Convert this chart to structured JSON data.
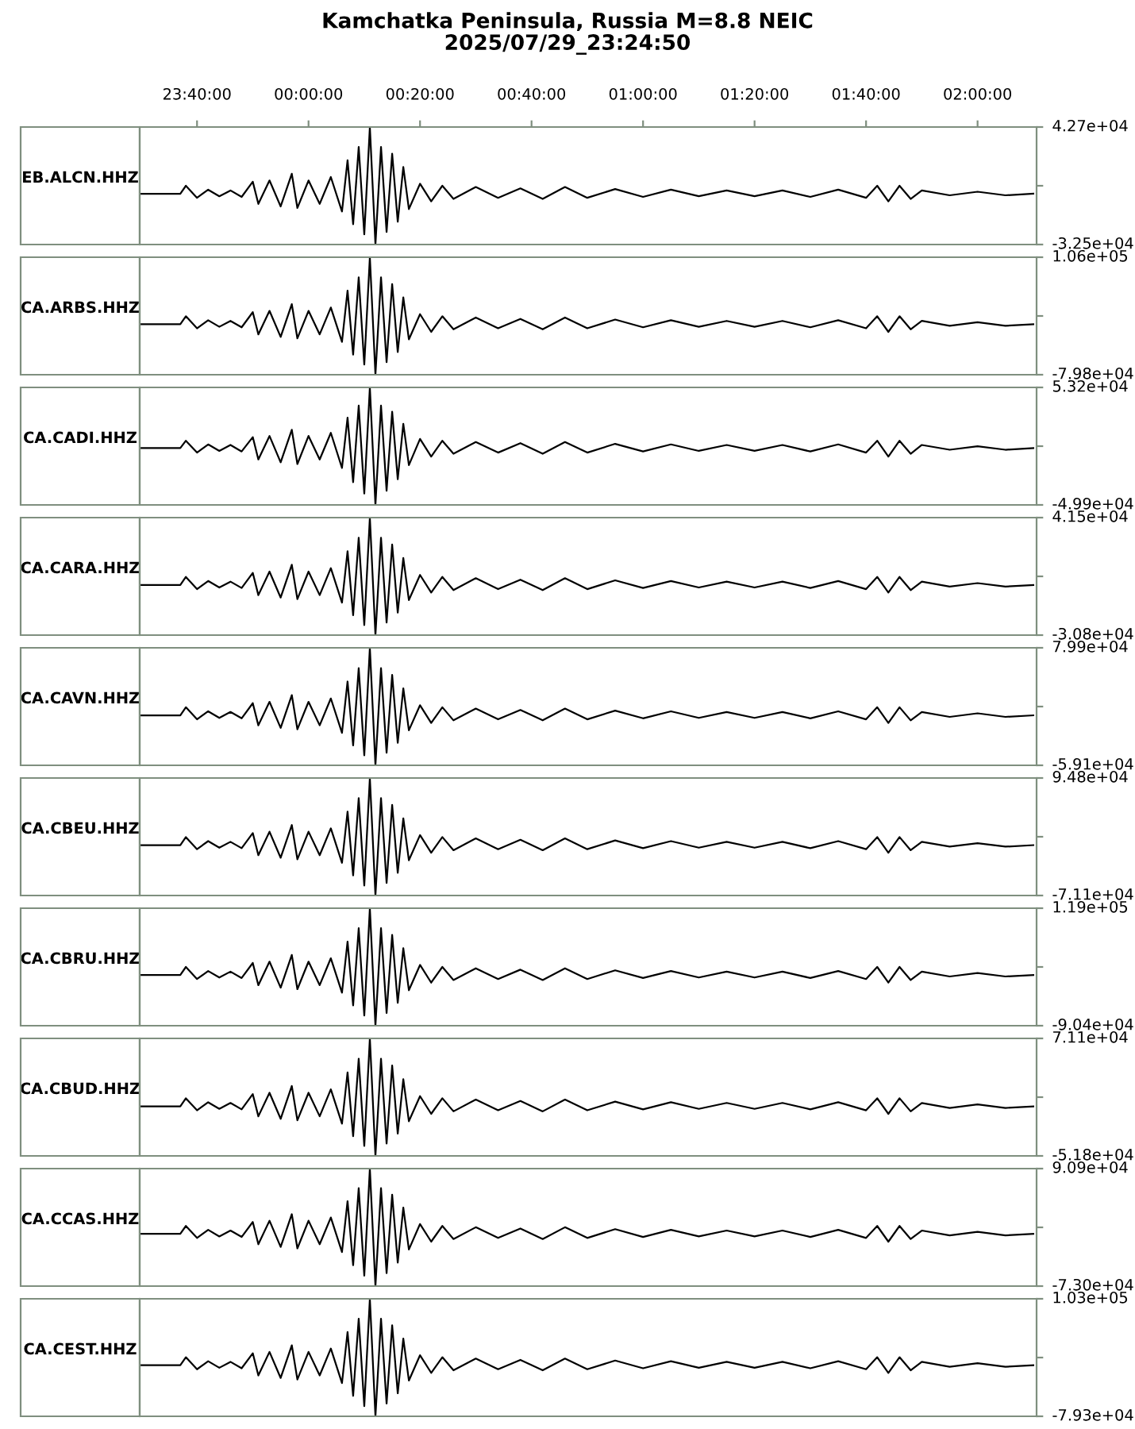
{
  "chart_data": [
    {
      "type": "line",
      "title": "Kamchatka Peninsula, Russia M=8.8 NEIC",
      "subtitle": "2025/07/29_23:24:50",
      "ylabel": "EB.ALCN.HHZ",
      "color": "#000000",
      "x": [
        "2025-07-29T23:30",
        "2025-07-29T23:37",
        "2025-07-29T23:38",
        "2025-07-29T23:40",
        "2025-07-29T23:42",
        "2025-07-29T23:44",
        "2025-07-29T23:46",
        "2025-07-29T23:48",
        "2025-07-29T23:50",
        "2025-07-29T23:51",
        "2025-07-29T23:53",
        "2025-07-29T23:55",
        "2025-07-29T23:57",
        "2025-07-29T23:58",
        "2025-07-30T00:00",
        "2025-07-30T00:02",
        "2025-07-30T00:04",
        "2025-07-30T00:06",
        "2025-07-30T00:07",
        "2025-07-30T00:08",
        "2025-07-30T00:09",
        "2025-07-30T00:10",
        "2025-07-30T00:11",
        "2025-07-30T00:12",
        "2025-07-30T00:13",
        "2025-07-30T00:14",
        "2025-07-30T00:15",
        "2025-07-30T00:16",
        "2025-07-30T00:17",
        "2025-07-30T00:18",
        "2025-07-30T00:20",
        "2025-07-30T00:22",
        "2025-07-30T00:24",
        "2025-07-30T00:26",
        "2025-07-30T00:30",
        "2025-07-30T00:34",
        "2025-07-30T00:38",
        "2025-07-30T00:42",
        "2025-07-30T00:46",
        "2025-07-30T00:50",
        "2025-07-30T00:55",
        "2025-07-30T01:00",
        "2025-07-30T01:05",
        "2025-07-30T01:10",
        "2025-07-30T01:15",
        "2025-07-30T01:20",
        "2025-07-30T01:25",
        "2025-07-30T01:30",
        "2025-07-30T01:35",
        "2025-07-30T01:40",
        "2025-07-30T01:42",
        "2025-07-30T01:44",
        "2025-07-30T01:46",
        "2025-07-30T01:48",
        "2025-07-30T01:50",
        "2025-07-30T01:55",
        "2025-07-30T02:00",
        "2025-07-30T02:05",
        "2025-07-30T02:10"
      ],
      "values": [
        0,
        0,
        5100,
        -2600,
        2600,
        -1600,
        2100,
        -2000,
        7700,
        -6500,
        8500,
        -8100,
        12800,
        -9100,
        8500,
        -6500,
        10700,
        -11400,
        21400,
        -19500,
        29900,
        -26000,
        42700,
        -32500,
        29900,
        -24400,
        25600,
        -17900,
        17100,
        -9800,
        6400,
        -4900,
        5100,
        -3300,
        4300,
        -2600,
        3400,
        -3300,
        4300,
        -2600,
        3000,
        -2000,
        2600,
        -1600,
        2100,
        -1600,
        2100,
        -2000,
        2600,
        -2600,
        5100,
        -4900,
        5100,
        -3300,
        2100,
        -1000,
        1300,
        -1000,
        0
      ],
      "xlim": [
        "2025-07-29T23:29:43",
        "2025-07-30T02:10:35"
      ],
      "xticks": [
        {
          "value": "2025-07-29T23:40",
          "label": "23:40:00"
        },
        {
          "value": "2025-07-30T00:00",
          "label": "00:00:00"
        },
        {
          "value": "2025-07-30T00:20",
          "label": "00:20:00"
        },
        {
          "value": "2025-07-30T00:40",
          "label": "00:40:00"
        },
        {
          "value": "2025-07-30T01:00",
          "label": "01:00:00"
        },
        {
          "value": "2025-07-30T01:20",
          "label": "01:20:00"
        },
        {
          "value": "2025-07-30T01:40",
          "label": "01:40:00"
        },
        {
          "value": "2025-07-30T02:00",
          "label": "02:00:00"
        }
      ],
      "ylim": [
        -32500,
        42700
      ],
      "yticks": [
        {
          "value": -32500,
          "label": "-3.25e+04"
        },
        {
          "value": 5100,
          "label": null
        },
        {
          "value": 42700,
          "label": "4.27e+04"
        }
      ]
    },
    {
      "type": "line",
      "ylabel": "CA.ARBS.HHZ",
      "color": "#000000",
      "tick_labels": "y",
      "x": [
        "2025-07-29T23:30",
        "2025-07-29T23:37",
        "2025-07-29T23:38",
        "2025-07-29T23:40",
        "2025-07-29T23:42",
        "2025-07-29T23:44",
        "2025-07-29T23:46",
        "2025-07-29T23:48",
        "2025-07-29T23:50",
        "2025-07-29T23:51",
        "2025-07-29T23:53",
        "2025-07-29T23:55",
        "2025-07-29T23:57",
        "2025-07-29T23:58",
        "2025-07-30T00:00",
        "2025-07-30T00:02",
        "2025-07-30T00:04",
        "2025-07-30T00:06",
        "2025-07-30T00:07",
        "2025-07-30T00:08",
        "2025-07-30T00:09",
        "2025-07-30T00:10",
        "2025-07-30T00:11",
        "2025-07-30T00:12",
        "2025-07-30T00:13",
        "2025-07-30T00:14",
        "2025-07-30T00:15",
        "2025-07-30T00:16",
        "2025-07-30T00:17",
        "2025-07-30T00:18",
        "2025-07-30T00:20",
        "2025-07-30T00:22",
        "2025-07-30T00:24",
        "2025-07-30T00:26",
        "2025-07-30T00:30",
        "2025-07-30T00:34",
        "2025-07-30T00:38",
        "2025-07-30T00:42",
        "2025-07-30T00:46",
        "2025-07-30T00:50",
        "2025-07-30T00:55",
        "2025-07-30T01:00",
        "2025-07-30T01:05",
        "2025-07-30T01:10",
        "2025-07-30T01:15",
        "2025-07-30T01:20",
        "2025-07-30T01:25",
        "2025-07-30T01:30",
        "2025-07-30T01:35",
        "2025-07-30T01:40",
        "2025-07-30T01:42",
        "2025-07-30T01:44",
        "2025-07-30T01:46",
        "2025-07-30T01:48",
        "2025-07-30T01:50",
        "2025-07-30T01:55",
        "2025-07-30T02:00",
        "2025-07-30T02:05",
        "2025-07-30T02:10"
      ],
      "values": [
        0,
        0,
        12700,
        -6400,
        6400,
        -4000,
        5300,
        -4800,
        19100,
        -16000,
        21200,
        -20000,
        31800,
        -22300,
        21200,
        -16000,
        26500,
        -27900,
        53000,
        -47900,
        74200,
        -63800,
        106000,
        -79800,
        74200,
        -59900,
        63600,
        -43900,
        42400,
        -23900,
        15900,
        -12000,
        12700,
        -8000,
        10600,
        -6400,
        8500,
        -8000,
        10600,
        -6400,
        7400,
        -4800,
        6400,
        -4000,
        5300,
        -4000,
        5300,
        -4800,
        6400,
        -6400,
        12700,
        -12000,
        12700,
        -8000,
        5300,
        -2400,
        3200,
        -2400,
        0
      ],
      "xlim": [
        "2025-07-29T23:29:43",
        "2025-07-30T02:10:35"
      ],
      "ylim": [
        -79800,
        106000
      ],
      "yticks": [
        {
          "value": -79800,
          "label": "-7.98e+04"
        },
        {
          "value": 13100,
          "label": null
        },
        {
          "value": 106000,
          "label": "1.06e+05"
        }
      ]
    },
    {
      "type": "line",
      "ylabel": "CA.CADI.HHZ",
      "color": "#000000",
      "tick_labels": "y",
      "x": [
        "2025-07-29T23:30",
        "2025-07-29T23:37",
        "2025-07-29T23:38",
        "2025-07-29T23:40",
        "2025-07-29T23:42",
        "2025-07-29T23:44",
        "2025-07-29T23:46",
        "2025-07-29T23:48",
        "2025-07-29T23:50",
        "2025-07-29T23:51",
        "2025-07-29T23:53",
        "2025-07-29T23:55",
        "2025-07-29T23:57",
        "2025-07-29T23:58",
        "2025-07-30T00:00",
        "2025-07-30T00:02",
        "2025-07-30T00:04",
        "2025-07-30T00:06",
        "2025-07-30T00:07",
        "2025-07-30T00:08",
        "2025-07-30T00:09",
        "2025-07-30T00:10",
        "2025-07-30T00:11",
        "2025-07-30T00:12",
        "2025-07-30T00:13",
        "2025-07-30T00:14",
        "2025-07-30T00:15",
        "2025-07-30T00:16",
        "2025-07-30T00:17",
        "2025-07-30T00:18",
        "2025-07-30T00:20",
        "2025-07-30T00:22",
        "2025-07-30T00:24",
        "2025-07-30T00:26",
        "2025-07-30T00:30",
        "2025-07-30T00:34",
        "2025-07-30T00:38",
        "2025-07-30T00:42",
        "2025-07-30T00:46",
        "2025-07-30T00:50",
        "2025-07-30T00:55",
        "2025-07-30T01:00",
        "2025-07-30T01:05",
        "2025-07-30T01:10",
        "2025-07-30T01:15",
        "2025-07-30T01:20",
        "2025-07-30T01:25",
        "2025-07-30T01:30",
        "2025-07-30T01:35",
        "2025-07-30T01:40",
        "2025-07-30T01:42",
        "2025-07-30T01:44",
        "2025-07-30T01:46",
        "2025-07-30T01:48",
        "2025-07-30T01:50",
        "2025-07-30T01:55",
        "2025-07-30T02:00",
        "2025-07-30T02:05",
        "2025-07-30T02:10"
      ],
      "values": [
        0,
        0,
        6400,
        -4000,
        3200,
        -2500,
        2700,
        -3000,
        9600,
        -10000,
        10600,
        -12500,
        16000,
        -14000,
        10600,
        -10000,
        13300,
        -17500,
        26600,
        -29900,
        37200,
        -39900,
        53200,
        -49900,
        37200,
        -37400,
        31900,
        -27400,
        21300,
        -15000,
        8000,
        -7500,
        6400,
        -5000,
        5300,
        -4000,
        4300,
        -5000,
        5300,
        -4000,
        3700,
        -3000,
        3200,
        -2500,
        2700,
        -2500,
        2700,
        -3000,
        3200,
        -4000,
        6400,
        -7500,
        6400,
        -5000,
        2700,
        -1500,
        1600,
        -1500,
        0
      ],
      "xlim": [
        "2025-07-29T23:29:43",
        "2025-07-30T02:10:35"
      ],
      "ylim": [
        -49900,
        53200
      ],
      "yticks": [
        {
          "value": -49900,
          "label": "-4.99e+04"
        },
        {
          "value": 1650,
          "label": null
        },
        {
          "value": 53200,
          "label": "5.32e+04"
        }
      ]
    },
    {
      "type": "line",
      "ylabel": "CA.CARA.HHZ",
      "color": "#000000",
      "tick_labels": "y",
      "x": [
        "2025-07-29T23:30",
        "2025-07-29T23:37",
        "2025-07-29T23:38",
        "2025-07-29T23:40",
        "2025-07-29T23:42",
        "2025-07-29T23:44",
        "2025-07-29T23:46",
        "2025-07-29T23:48",
        "2025-07-29T23:50",
        "2025-07-29T23:51",
        "2025-07-29T23:53",
        "2025-07-29T23:55",
        "2025-07-29T23:57",
        "2025-07-29T23:58",
        "2025-07-30T00:00",
        "2025-07-30T00:02",
        "2025-07-30T00:04",
        "2025-07-30T00:06",
        "2025-07-30T00:07",
        "2025-07-30T00:08",
        "2025-07-30T00:09",
        "2025-07-30T00:10",
        "2025-07-30T00:11",
        "2025-07-30T00:12",
        "2025-07-30T00:13",
        "2025-07-30T00:14",
        "2025-07-30T00:15",
        "2025-07-30T00:16",
        "2025-07-30T00:17",
        "2025-07-30T00:18",
        "2025-07-30T00:20",
        "2025-07-30T00:22",
        "2025-07-30T00:24",
        "2025-07-30T00:26",
        "2025-07-30T00:30",
        "2025-07-30T00:34",
        "2025-07-30T00:38",
        "2025-07-30T00:42",
        "2025-07-30T00:46",
        "2025-07-30T00:50",
        "2025-07-30T00:55",
        "2025-07-30T01:00",
        "2025-07-30T01:05",
        "2025-07-30T01:10",
        "2025-07-30T01:15",
        "2025-07-30T01:20",
        "2025-07-30T01:25",
        "2025-07-30T01:30",
        "2025-07-30T01:35",
        "2025-07-30T01:40",
        "2025-07-30T01:42",
        "2025-07-30T01:44",
        "2025-07-30T01:46",
        "2025-07-30T01:48",
        "2025-07-30T01:50",
        "2025-07-30T01:55",
        "2025-07-30T02:00",
        "2025-07-30T02:05",
        "2025-07-30T02:10"
      ],
      "values": [
        0,
        0,
        5000,
        -2500,
        2500,
        -1500,
        2100,
        -1800,
        7500,
        -6200,
        8300,
        -7700,
        12500,
        -8600,
        8300,
        -6200,
        10400,
        -10800,
        20800,
        -18500,
        29100,
        -24600,
        41500,
        -30800,
        29100,
        -23100,
        24900,
        -16900,
        16600,
        -9200,
        6200,
        -4600,
        5000,
        -3100,
        4200,
        -2500,
        3300,
        -3100,
        4200,
        -2500,
        2900,
        -1800,
        2500,
        -1500,
        2100,
        -1500,
        2100,
        -1800,
        2500,
        -2500,
        5000,
        -4600,
        5000,
        -3100,
        2100,
        -900,
        1200,
        -900,
        0
      ],
      "xlim": [
        "2025-07-29T23:29:43",
        "2025-07-30T02:10:35"
      ],
      "ylim": [
        -30800,
        41500
      ],
      "yticks": [
        {
          "value": -30800,
          "label": "-3.08e+04"
        },
        {
          "value": 5350,
          "label": null
        },
        {
          "value": 41500,
          "label": "4.15e+04"
        }
      ]
    },
    {
      "type": "line",
      "ylabel": "CA.CAVN.HHZ",
      "color": "#000000",
      "tick_labels": "y",
      "x": [
        "2025-07-29T23:30",
        "2025-07-29T23:37",
        "2025-07-29T23:38",
        "2025-07-29T23:40",
        "2025-07-29T23:42",
        "2025-07-29T23:44",
        "2025-07-29T23:46",
        "2025-07-29T23:48",
        "2025-07-29T23:50",
        "2025-07-29T23:51",
        "2025-07-29T23:53",
        "2025-07-29T23:55",
        "2025-07-29T23:57",
        "2025-07-29T23:58",
        "2025-07-30T00:00",
        "2025-07-30T00:02",
        "2025-07-30T00:04",
        "2025-07-30T00:06",
        "2025-07-30T00:07",
        "2025-07-30T00:08",
        "2025-07-30T00:09",
        "2025-07-30T00:10",
        "2025-07-30T00:11",
        "2025-07-30T00:12",
        "2025-07-30T00:13",
        "2025-07-30T00:14",
        "2025-07-30T00:15",
        "2025-07-30T00:16",
        "2025-07-30T00:17",
        "2025-07-30T00:18",
        "2025-07-30T00:20",
        "2025-07-30T00:22",
        "2025-07-30T00:24",
        "2025-07-30T00:26",
        "2025-07-30T00:30",
        "2025-07-30T00:34",
        "2025-07-30T00:38",
        "2025-07-30T00:42",
        "2025-07-30T00:46",
        "2025-07-30T00:50",
        "2025-07-30T00:55",
        "2025-07-30T01:00",
        "2025-07-30T01:05",
        "2025-07-30T01:10",
        "2025-07-30T01:15",
        "2025-07-30T01:20",
        "2025-07-30T01:25",
        "2025-07-30T01:30",
        "2025-07-30T01:35",
        "2025-07-30T01:40",
        "2025-07-30T01:42",
        "2025-07-30T01:44",
        "2025-07-30T01:46",
        "2025-07-30T01:48",
        "2025-07-30T01:50",
        "2025-07-30T01:55",
        "2025-07-30T02:00",
        "2025-07-30T02:05",
        "2025-07-30T02:10"
      ],
      "values": [
        0,
        0,
        9600,
        -4700,
        4800,
        -3000,
        4000,
        -3500,
        14400,
        -11800,
        16000,
        -14800,
        24000,
        -16500,
        16000,
        -11800,
        20000,
        -20700,
        40000,
        -35500,
        55900,
        -47300,
        79900,
        -59100,
        55900,
        -44300,
        47900,
        -32500,
        32000,
        -17700,
        12000,
        -8900,
        9600,
        -5900,
        8000,
        -4700,
        6400,
        -5900,
        8000,
        -4700,
        5600,
        -3500,
        4800,
        -3000,
        4000,
        -3000,
        4000,
        -3500,
        4800,
        -4700,
        9600,
        -8900,
        9600,
        -5900,
        4000,
        -1800,
        2400,
        -1800,
        0
      ],
      "xlim": [
        "2025-07-29T23:29:43",
        "2025-07-30T02:10:35"
      ],
      "ylim": [
        -59100,
        79900
      ],
      "yticks": [
        {
          "value": -59100,
          "label": "-5.91e+04"
        },
        {
          "value": 10400,
          "label": null
        },
        {
          "value": 79900,
          "label": "7.99e+04"
        }
      ]
    },
    {
      "type": "line",
      "ylabel": "CA.CBEU.HHZ",
      "color": "#000000",
      "tick_labels": "y",
      "x": [
        "2025-07-29T23:30",
        "2025-07-29T23:37",
        "2025-07-29T23:38",
        "2025-07-29T23:40",
        "2025-07-29T23:42",
        "2025-07-29T23:44",
        "2025-07-29T23:46",
        "2025-07-29T23:48",
        "2025-07-29T23:50",
        "2025-07-29T23:51",
        "2025-07-29T23:53",
        "2025-07-29T23:55",
        "2025-07-29T23:57",
        "2025-07-29T23:58",
        "2025-07-30T00:00",
        "2025-07-30T00:02",
        "2025-07-30T00:04",
        "2025-07-30T00:06",
        "2025-07-30T00:07",
        "2025-07-30T00:08",
        "2025-07-30T00:09",
        "2025-07-30T00:10",
        "2025-07-30T00:11",
        "2025-07-30T00:12",
        "2025-07-30T00:13",
        "2025-07-30T00:14",
        "2025-07-30T00:15",
        "2025-07-30T00:16",
        "2025-07-30T00:17",
        "2025-07-30T00:18",
        "2025-07-30T00:20",
        "2025-07-30T00:22",
        "2025-07-30T00:24",
        "2025-07-30T00:26",
        "2025-07-30T00:30",
        "2025-07-30T00:34",
        "2025-07-30T00:38",
        "2025-07-30T00:42",
        "2025-07-30T00:46",
        "2025-07-30T00:50",
        "2025-07-30T00:55",
        "2025-07-30T01:00",
        "2025-07-30T01:05",
        "2025-07-30T01:10",
        "2025-07-30T01:15",
        "2025-07-30T01:20",
        "2025-07-30T01:25",
        "2025-07-30T01:30",
        "2025-07-30T01:35",
        "2025-07-30T01:40",
        "2025-07-30T01:42",
        "2025-07-30T01:44",
        "2025-07-30T01:46",
        "2025-07-30T01:48",
        "2025-07-30T01:50",
        "2025-07-30T01:55",
        "2025-07-30T02:00",
        "2025-07-30T02:05",
        "2025-07-30T02:10"
      ],
      "values": [
        0,
        0,
        11400,
        -5700,
        5700,
        -3600,
        4700,
        -4300,
        17100,
        -14200,
        19000,
        -17800,
        28400,
        -19900,
        19000,
        -14200,
        23700,
        -24900,
        47400,
        -42700,
        66400,
        -56900,
        94800,
        -71100,
        66400,
        -53300,
        56900,
        -39100,
        37900,
        -21300,
        14200,
        -10700,
        11400,
        -7100,
        9500,
        -5700,
        7600,
        -7100,
        9500,
        -5700,
        6600,
        -4300,
        5700,
        -3600,
        4700,
        -3600,
        4700,
        -4300,
        5700,
        -5700,
        11400,
        -10700,
        11400,
        -7100,
        4700,
        -2100,
        2800,
        -2100,
        0
      ],
      "xlim": [
        "2025-07-29T23:29:43",
        "2025-07-30T02:10:35"
      ],
      "ylim": [
        -71100,
        94800
      ],
      "yticks": [
        {
          "value": -71100,
          "label": "-7.11e+04"
        },
        {
          "value": 11850,
          "label": null
        },
        {
          "value": 94800,
          "label": "9.48e+04"
        }
      ]
    },
    {
      "type": "line",
      "ylabel": "CA.CBRU.HHZ",
      "color": "#000000",
      "tick_labels": "y",
      "x": [
        "2025-07-29T23:30",
        "2025-07-29T23:37",
        "2025-07-29T23:38",
        "2025-07-29T23:40",
        "2025-07-29T23:42",
        "2025-07-29T23:44",
        "2025-07-29T23:46",
        "2025-07-29T23:48",
        "2025-07-29T23:50",
        "2025-07-29T23:51",
        "2025-07-29T23:53",
        "2025-07-29T23:55",
        "2025-07-29T23:57",
        "2025-07-29T23:58",
        "2025-07-30T00:00",
        "2025-07-30T00:02",
        "2025-07-30T00:04",
        "2025-07-30T00:06",
        "2025-07-30T00:07",
        "2025-07-30T00:08",
        "2025-07-30T00:09",
        "2025-07-30T00:10",
        "2025-07-30T00:11",
        "2025-07-30T00:12",
        "2025-07-30T00:13",
        "2025-07-30T00:14",
        "2025-07-30T00:15",
        "2025-07-30T00:16",
        "2025-07-30T00:17",
        "2025-07-30T00:18",
        "2025-07-30T00:20",
        "2025-07-30T00:22",
        "2025-07-30T00:24",
        "2025-07-30T00:26",
        "2025-07-30T00:30",
        "2025-07-30T00:34",
        "2025-07-30T00:38",
        "2025-07-30T00:42",
        "2025-07-30T00:46",
        "2025-07-30T00:50",
        "2025-07-30T00:55",
        "2025-07-30T01:00",
        "2025-07-30T01:05",
        "2025-07-30T01:10",
        "2025-07-30T01:15",
        "2025-07-30T01:20",
        "2025-07-30T01:25",
        "2025-07-30T01:30",
        "2025-07-30T01:35",
        "2025-07-30T01:40",
        "2025-07-30T01:42",
        "2025-07-30T01:44",
        "2025-07-30T01:46",
        "2025-07-30T01:48",
        "2025-07-30T01:50",
        "2025-07-30T01:55",
        "2025-07-30T02:00",
        "2025-07-30T02:05",
        "2025-07-30T02:10"
      ],
      "values": [
        0,
        0,
        14300,
        -7200,
        7100,
        -4500,
        6000,
        -5400,
        21400,
        -18100,
        23800,
        -22600,
        35700,
        -25300,
        23800,
        -18100,
        29800,
        -31600,
        59500,
        -54200,
        83300,
        -72300,
        119000,
        -90400,
        83300,
        -67800,
        71400,
        -49700,
        47600,
        -27100,
        17900,
        -13600,
        14300,
        -9000,
        11900,
        -7200,
        9500,
        -9000,
        11900,
        -7200,
        8300,
        -5400,
        7100,
        -4500,
        6000,
        -4500,
        6000,
        -5400,
        7100,
        -7200,
        14300,
        -13600,
        14300,
        -9000,
        6000,
        -2700,
        3600,
        -2700,
        0
      ],
      "xlim": [
        "2025-07-29T23:29:43",
        "2025-07-30T02:10:35"
      ],
      "ylim": [
        -90400,
        119000
      ],
      "yticks": [
        {
          "value": -90400,
          "label": "-9.04e+04"
        },
        {
          "value": 14300,
          "label": null
        },
        {
          "value": 119000,
          "label": "1.19e+05"
        }
      ]
    },
    {
      "type": "line",
      "ylabel": "CA.CBUD.HHZ",
      "color": "#000000",
      "tick_labels": "y",
      "x": [
        "2025-07-29T23:30",
        "2025-07-29T23:37",
        "2025-07-29T23:38",
        "2025-07-29T23:40",
        "2025-07-29T23:42",
        "2025-07-29T23:44",
        "2025-07-29T23:46",
        "2025-07-29T23:48",
        "2025-07-29T23:50",
        "2025-07-29T23:51",
        "2025-07-29T23:53",
        "2025-07-29T23:55",
        "2025-07-29T23:57",
        "2025-07-29T23:58",
        "2025-07-30T00:00",
        "2025-07-30T00:02",
        "2025-07-30T00:04",
        "2025-07-30T00:06",
        "2025-07-30T00:07",
        "2025-07-30T00:08",
        "2025-07-30T00:09",
        "2025-07-30T00:10",
        "2025-07-30T00:11",
        "2025-07-30T00:12",
        "2025-07-30T00:13",
        "2025-07-30T00:14",
        "2025-07-30T00:15",
        "2025-07-30T00:16",
        "2025-07-30T00:17",
        "2025-07-30T00:18",
        "2025-07-30T00:20",
        "2025-07-30T00:22",
        "2025-07-30T00:24",
        "2025-07-30T00:26",
        "2025-07-30T00:30",
        "2025-07-30T00:34",
        "2025-07-30T00:38",
        "2025-07-30T00:42",
        "2025-07-30T00:46",
        "2025-07-30T00:50",
        "2025-07-30T00:55",
        "2025-07-30T01:00",
        "2025-07-30T01:05",
        "2025-07-30T01:10",
        "2025-07-30T01:15",
        "2025-07-30T01:20",
        "2025-07-30T01:25",
        "2025-07-30T01:30",
        "2025-07-30T01:35",
        "2025-07-30T01:40",
        "2025-07-30T01:42",
        "2025-07-30T01:44",
        "2025-07-30T01:46",
        "2025-07-30T01:48",
        "2025-07-30T01:50",
        "2025-07-30T01:55",
        "2025-07-30T02:00",
        "2025-07-30T02:05",
        "2025-07-30T02:10"
      ],
      "values": [
        0,
        0,
        8500,
        -4100,
        4300,
        -2600,
        3600,
        -3100,
        12800,
        -10400,
        14200,
        -13000,
        21300,
        -14500,
        14200,
        -10400,
        17800,
        -18100,
        35600,
        -31100,
        49800,
        -41400,
        71100,
        -51800,
        49800,
        -38900,
        42700,
        -28500,
        28400,
        -15500,
        10700,
        -7800,
        8500,
        -5200,
        7100,
        -4100,
        5700,
        -5200,
        7100,
        -4100,
        5000,
        -3100,
        4300,
        -2600,
        3600,
        -2600,
        3600,
        -3100,
        4300,
        -4100,
        8500,
        -7800,
        8500,
        -5200,
        3600,
        -1600,
        2100,
        -1600,
        0
      ],
      "xlim": [
        "2025-07-29T23:29:43",
        "2025-07-30T02:10:35"
      ],
      "ylim": [
        -51800,
        71100
      ],
      "yticks": [
        {
          "value": -51800,
          "label": "-5.18e+04"
        },
        {
          "value": 9650,
          "label": null
        },
        {
          "value": 71100,
          "label": "7.11e+04"
        }
      ]
    },
    {
      "type": "line",
      "ylabel": "CA.CCAS.HHZ",
      "color": "#000000",
      "tick_labels": "y",
      "x": [
        "2025-07-29T23:30",
        "2025-07-29T23:37",
        "2025-07-29T23:38",
        "2025-07-29T23:40",
        "2025-07-29T23:42",
        "2025-07-29T23:44",
        "2025-07-29T23:46",
        "2025-07-29T23:48",
        "2025-07-29T23:50",
        "2025-07-29T23:51",
        "2025-07-29T23:53",
        "2025-07-29T23:55",
        "2025-07-29T23:57",
        "2025-07-29T23:58",
        "2025-07-30T00:00",
        "2025-07-30T00:02",
        "2025-07-30T00:04",
        "2025-07-30T00:06",
        "2025-07-30T00:07",
        "2025-07-30T00:08",
        "2025-07-30T00:09",
        "2025-07-30T00:10",
        "2025-07-30T00:11",
        "2025-07-30T00:12",
        "2025-07-30T00:13",
        "2025-07-30T00:14",
        "2025-07-30T00:15",
        "2025-07-30T00:16",
        "2025-07-30T00:17",
        "2025-07-30T00:18",
        "2025-07-30T00:20",
        "2025-07-30T00:22",
        "2025-07-30T00:24",
        "2025-07-30T00:26",
        "2025-07-30T00:30",
        "2025-07-30T00:34",
        "2025-07-30T00:38",
        "2025-07-30T00:42",
        "2025-07-30T00:46",
        "2025-07-30T00:50",
        "2025-07-30T00:55",
        "2025-07-30T01:00",
        "2025-07-30T01:05",
        "2025-07-30T01:10",
        "2025-07-30T01:15",
        "2025-07-30T01:20",
        "2025-07-30T01:25",
        "2025-07-30T01:30",
        "2025-07-30T01:35",
        "2025-07-30T01:40",
        "2025-07-30T01:42",
        "2025-07-30T01:44",
        "2025-07-30T01:46",
        "2025-07-30T01:48",
        "2025-07-30T01:50",
        "2025-07-30T01:55",
        "2025-07-30T02:00",
        "2025-07-30T02:05",
        "2025-07-30T02:10"
      ],
      "values": [
        0,
        0,
        10900,
        -5800,
        5500,
        -3700,
        4500,
        -4400,
        16400,
        -14600,
        18200,
        -18300,
        27300,
        -20400,
        18200,
        -14600,
        22700,
        -25600,
        45500,
        -43800,
        63600,
        -58400,
        90900,
        -73000,
        63600,
        -54800,
        54500,
        -40200,
        36400,
        -21900,
        13600,
        -11000,
        10900,
        -7300,
        9100,
        -5800,
        7300,
        -7300,
        9100,
        -5800,
        6400,
        -4400,
        5500,
        -3700,
        4500,
        -3700,
        4500,
        -4400,
        5500,
        -5800,
        10900,
        -11000,
        10900,
        -7300,
        4500,
        -2200,
        2700,
        -2200,
        0
      ],
      "xlim": [
        "2025-07-29T23:29:43",
        "2025-07-30T02:10:35"
      ],
      "ylim": [
        -73000,
        90900
      ],
      "yticks": [
        {
          "value": -73000,
          "label": "-7.30e+04"
        },
        {
          "value": 8950,
          "label": null
        },
        {
          "value": 90900,
          "label": "9.09e+04"
        }
      ]
    },
    {
      "type": "line",
      "ylabel": "CA.CEST.HHZ",
      "color": "#000000",
      "tick_labels": "y",
      "x": [
        "2025-07-29T23:30",
        "2025-07-29T23:37",
        "2025-07-29T23:38",
        "2025-07-29T23:40",
        "2025-07-29T23:42",
        "2025-07-29T23:44",
        "2025-07-29T23:46",
        "2025-07-29T23:48",
        "2025-07-29T23:50",
        "2025-07-29T23:51",
        "2025-07-29T23:53",
        "2025-07-29T23:55",
        "2025-07-29T23:57",
        "2025-07-29T23:58",
        "2025-07-30T00:00",
        "2025-07-30T00:02",
        "2025-07-30T00:04",
        "2025-07-30T00:06",
        "2025-07-30T00:07",
        "2025-07-30T00:08",
        "2025-07-30T00:09",
        "2025-07-30T00:10",
        "2025-07-30T00:11",
        "2025-07-30T00:12",
        "2025-07-30T00:13",
        "2025-07-30T00:14",
        "2025-07-30T00:15",
        "2025-07-30T00:16",
        "2025-07-30T00:17",
        "2025-07-30T00:18",
        "2025-07-30T00:20",
        "2025-07-30T00:22",
        "2025-07-30T00:24",
        "2025-07-30T00:26",
        "2025-07-30T00:30",
        "2025-07-30T00:34",
        "2025-07-30T00:38",
        "2025-07-30T00:42",
        "2025-07-30T00:46",
        "2025-07-30T00:50",
        "2025-07-30T00:55",
        "2025-07-30T01:00",
        "2025-07-30T01:05",
        "2025-07-30T01:10",
        "2025-07-30T01:15",
        "2025-07-30T01:20",
        "2025-07-30T01:25",
        "2025-07-30T01:30",
        "2025-07-30T01:35",
        "2025-07-30T01:40",
        "2025-07-30T01:42",
        "2025-07-30T01:44",
        "2025-07-30T01:46",
        "2025-07-30T01:48",
        "2025-07-30T01:50",
        "2025-07-30T01:55",
        "2025-07-30T02:00",
        "2025-07-30T02:05",
        "2025-07-30T02:10"
      ],
      "values": [
        0,
        0,
        12400,
        -6300,
        6200,
        -4000,
        5200,
        -4800,
        18500,
        -15900,
        20600,
        -19800,
        30900,
        -22200,
        20600,
        -15900,
        25800,
        -27800,
        51500,
        -47600,
        72100,
        -63400,
        103000,
        -79300,
        72100,
        -59500,
        61800,
        -43600,
        41200,
        -23800,
        15500,
        -11900,
        12400,
        -7900,
        10300,
        -6300,
        8200,
        -7900,
        10300,
        -6300,
        7200,
        -4800,
        6200,
        -4000,
        5200,
        -4000,
        5200,
        -4800,
        6200,
        -6300,
        12400,
        -11900,
        12400,
        -7900,
        5200,
        -2400,
        3100,
        -2400,
        0
      ],
      "xlim": [
        "2025-07-29T23:29:43",
        "2025-07-30T02:10:35"
      ],
      "ylim": [
        -79300,
        103000
      ],
      "yticks": [
        {
          "value": -79300,
          "label": "-7.93e+04"
        },
        {
          "value": 11850,
          "label": null
        },
        {
          "value": 103000,
          "label": "1.03e+05"
        }
      ]
    }
  ]
}
